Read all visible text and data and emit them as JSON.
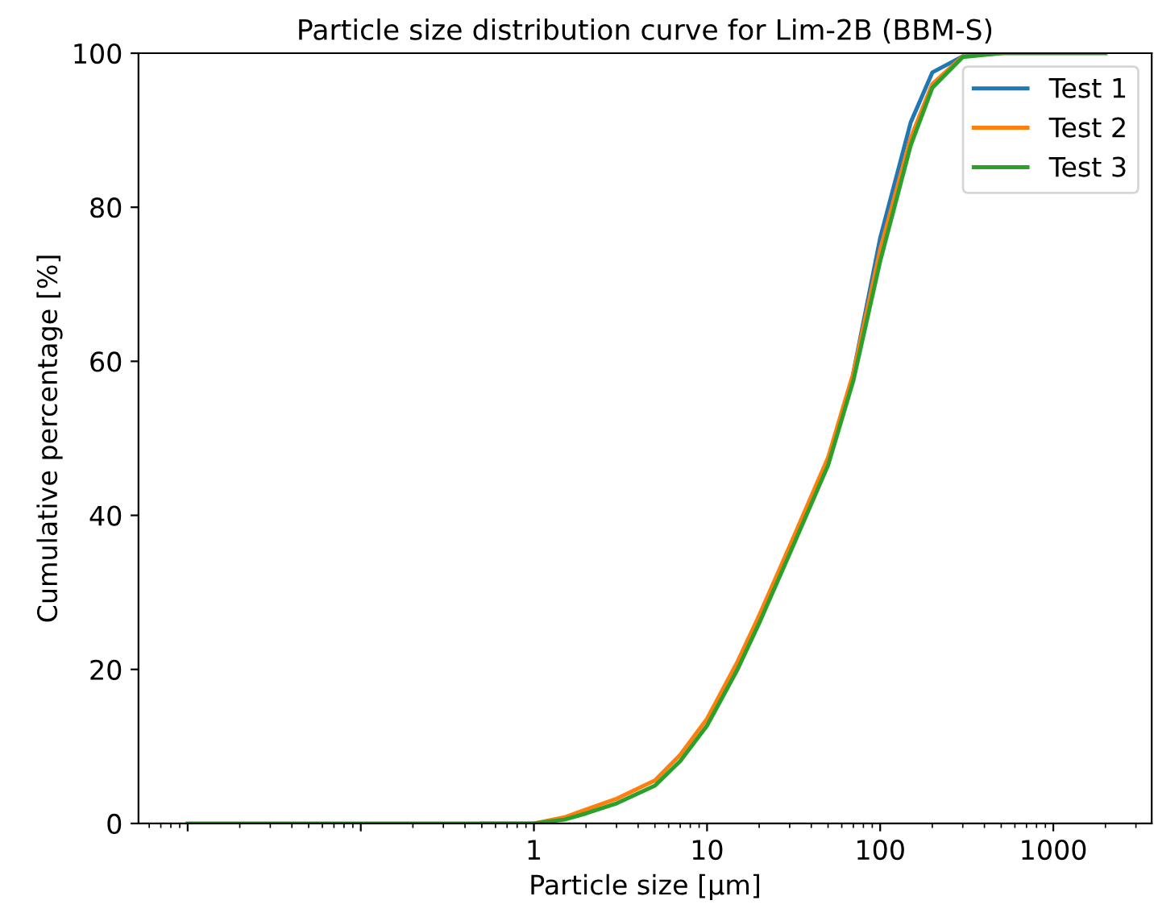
{
  "chart_data": {
    "type": "line",
    "title": "Particle size distribution curve for Lim-2B (BBM-S)",
    "xlabel": "Particle size [μm]",
    "ylabel": "Cumulative percentage [%]",
    "log": "x",
    "x": [
      0.01,
      0.1,
      0.5,
      1,
      1.5,
      2,
      3,
      5,
      7,
      10,
      15,
      20,
      30,
      50,
      70,
      100,
      150,
      200,
      300,
      500,
      1000,
      2000
    ],
    "series": [
      {
        "name": "Test 1",
        "color": "#1f77b4",
        "values": [
          null,
          null,
          null,
          null,
          null,
          null,
          null,
          null,
          null,
          null,
          null,
          null,
          null,
          null,
          58.5,
          76,
          91,
          97.5,
          99.6,
          null,
          null,
          null
        ]
      },
      {
        "name": "Test 2",
        "color": "#ff7f0e",
        "values": [
          null,
          null,
          0,
          0,
          0.8,
          1.8,
          3.2,
          5.6,
          8.9,
          13.6,
          21,
          27,
          36,
          47.5,
          58.5,
          74.5,
          89,
          96,
          99.6,
          100,
          null,
          null
        ]
      },
      {
        "name": "Test 3",
        "color": "#2ca02c",
        "values": [
          0,
          0,
          0,
          0,
          0.5,
          1.3,
          2.6,
          4.9,
          8.1,
          12.7,
          20,
          26,
          35,
          46.5,
          57.5,
          73,
          88,
          95.5,
          99.5,
          100,
          100,
          100
        ]
      }
    ],
    "xlim": [
      0.0052,
      3700
    ],
    "ylim": [
      0,
      100
    ],
    "xticks": [
      {
        "value": 0.01,
        "label": null
      },
      {
        "value": 0.1,
        "label": null
      },
      1,
      10,
      100,
      1000
    ],
    "yticks": [
      0,
      20,
      40,
      60,
      80,
      100
    ],
    "grid": false,
    "legend": "top right",
    "line_style": "solid",
    "marker": "none"
  }
}
